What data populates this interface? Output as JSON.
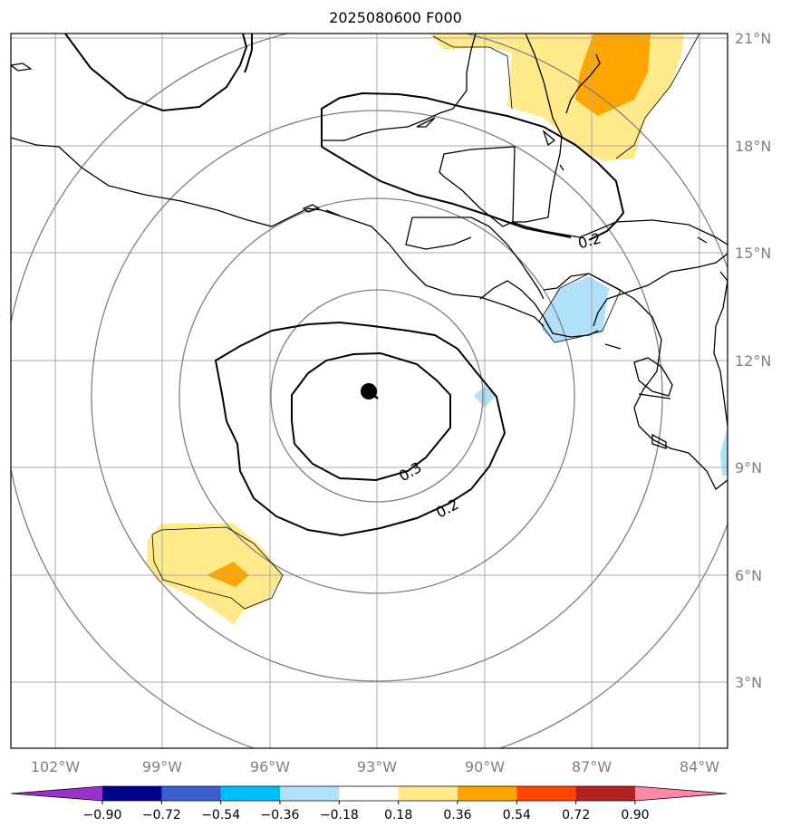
{
  "title": "2025080600 F000",
  "longitude_labels": [
    "102°W",
    "99°W",
    "96°W",
    "93°W",
    "90°W",
    "87°W",
    "84°W"
  ],
  "latitude_labels": [
    "21°N",
    "18°N",
    "15°N",
    "12°N",
    "9°N",
    "6°N",
    "3°N"
  ],
  "contour_labels": {
    "inner_upper": "0.3",
    "outer_lower": "0.2",
    "north_band": "0.2"
  },
  "colorbar": {
    "ticks": [
      "−0.90",
      "−0.72",
      "−0.54",
      "−0.36",
      "−0.18",
      "0.18",
      "0.36",
      "0.54",
      "0.72",
      "0.90"
    ],
    "colors": [
      "#9932cc",
      "#00008b",
      "#3a5fcd",
      "#00bfff",
      "#b0e0fa",
      "#ffffff",
      "#ffe98a",
      "#ffa500",
      "#ff4500",
      "#b22222",
      "#ff88aa"
    ]
  },
  "center_marker": {
    "lon": -93.2,
    "lat": 11.2
  }
}
